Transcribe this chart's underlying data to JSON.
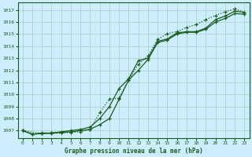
{
  "title": "Graphe pression niveau de la mer (hPa)",
  "bg_color": "#cceeff",
  "grid_color": "#aaccbb",
  "line_color": "#1a5c1a",
  "xlim": [
    -0.5,
    23.5
  ],
  "ylim": [
    1006.4,
    1017.6
  ],
  "yticks": [
    1007,
    1008,
    1009,
    1010,
    1011,
    1012,
    1013,
    1014,
    1015,
    1016,
    1017
  ],
  "xticks": [
    0,
    1,
    2,
    3,
    4,
    5,
    6,
    7,
    8,
    9,
    10,
    11,
    12,
    13,
    14,
    15,
    16,
    17,
    18,
    19,
    20,
    21,
    22,
    23
  ],
  "series1_x": [
    0,
    1,
    2,
    3,
    4,
    5,
    6,
    7,
    8,
    9,
    10,
    11,
    12,
    13,
    14,
    15,
    16,
    17,
    18,
    19,
    20,
    21,
    22,
    23
  ],
  "series1_y": [
    1007.0,
    1006.7,
    1006.8,
    1006.8,
    1006.9,
    1007.0,
    1007.1,
    1007.3,
    1008.0,
    1009.0,
    1010.5,
    1011.3,
    1012.8,
    1013.0,
    1014.4,
    1014.6,
    1015.1,
    1015.2,
    1015.2,
    1015.5,
    1016.2,
    1016.5,
    1016.9,
    1016.8
  ],
  "series2_x": [
    0,
    1,
    2,
    3,
    4,
    5,
    6,
    7,
    8,
    9,
    10,
    11,
    12,
    13,
    14,
    15,
    16,
    17,
    18,
    19,
    20,
    21,
    22,
    23
  ],
  "series2_y": [
    1007.0,
    1006.7,
    1006.75,
    1006.8,
    1006.85,
    1006.9,
    1007.0,
    1007.1,
    1007.5,
    1008.0,
    1009.6,
    1011.2,
    1012.0,
    1012.9,
    1014.3,
    1014.5,
    1015.0,
    1015.15,
    1015.15,
    1015.4,
    1016.0,
    1016.3,
    1016.7,
    1016.65
  ],
  "series3_x": [
    0,
    2,
    3,
    4,
    5,
    6,
    7,
    8,
    9,
    10,
    11,
    12,
    13,
    14,
    15,
    16,
    17,
    18,
    19,
    20,
    21,
    22,
    23
  ],
  "series3_y": [
    1007.0,
    1006.75,
    1006.75,
    1006.8,
    1006.85,
    1006.9,
    1007.1,
    1008.5,
    1009.6,
    1009.7,
    1011.2,
    1012.5,
    1013.2,
    1014.55,
    1015.05,
    1015.2,
    1015.55,
    1015.8,
    1016.2,
    1016.55,
    1016.85,
    1017.1,
    1016.8
  ]
}
